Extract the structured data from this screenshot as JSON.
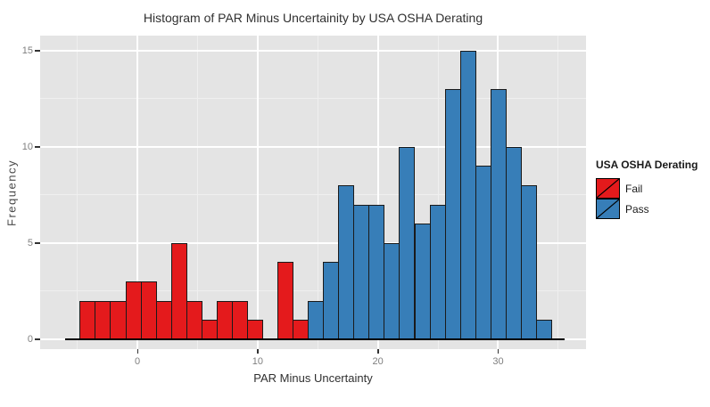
{
  "title": "Histogram of PAR Minus Uncertainity by USA OSHA Derating",
  "x_axis": {
    "label": "PAR Minus Uncertainty",
    "tick_values": [
      0,
      10,
      20,
      30
    ],
    "tick_labels": [
      "0",
      "10",
      "20",
      "30"
    ],
    "minor_gridlines": [
      -5,
      5,
      15,
      25,
      35
    ]
  },
  "y_axis": {
    "label": "Frequency",
    "tick_values": [
      0,
      5,
      10,
      15
    ],
    "tick_labels": [
      "0",
      "5",
      "10",
      "15"
    ],
    "minor_gridlines": [
      2.5,
      7.5,
      12.5
    ]
  },
  "legend": {
    "title": "USA OSHA Derating",
    "items": [
      {
        "label": "Fail",
        "color": "#e41a1c"
      },
      {
        "label": "Pass",
        "color": "#377eb8"
      }
    ]
  },
  "chart_data": {
    "type": "bar",
    "subtype": "histogram",
    "title": "Histogram of PAR Minus Uncertainity by USA OSHA Derating",
    "xlabel": "PAR Minus Uncertainty",
    "ylabel": "Frequency",
    "xlim": [
      -8.09,
      37.31
    ],
    "ylim": [
      -0.52,
      15.78
    ],
    "grid": "major-and-minor",
    "legend_position": "right",
    "bins": {
      "start": -4.8,
      "width": 1.265,
      "count": 31
    },
    "series": [
      {
        "name": "Fail",
        "color": "#e41a1c",
        "counts": [
          2,
          2,
          2,
          3,
          3,
          2,
          5,
          2,
          1,
          2,
          2,
          1,
          0,
          4,
          1,
          0,
          0,
          0,
          0,
          0,
          0,
          0,
          0,
          0,
          0,
          0,
          0,
          0,
          0,
          0,
          0
        ]
      },
      {
        "name": "Pass",
        "color": "#377eb8",
        "counts": [
          0,
          0,
          0,
          0,
          0,
          0,
          0,
          0,
          0,
          0,
          0,
          0,
          0,
          0,
          0,
          2,
          4,
          8,
          7,
          7,
          5,
          10,
          6,
          7,
          13,
          15,
          9,
          13,
          10,
          8,
          1
        ]
      }
    ],
    "baseline_extent": [
      -6,
      35.5
    ]
  },
  "colors": {
    "panel_bg": "#e4e4e4",
    "grid_major": "#ffffff",
    "grid_minor": "#efefef",
    "bar_border": "#1a1a1a",
    "axis_line": "#000000",
    "tick_label": "#7f7f7f",
    "text": "#303030"
  }
}
